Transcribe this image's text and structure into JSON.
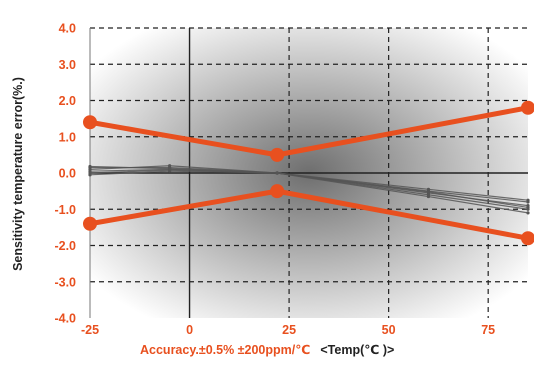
{
  "chart_data": {
    "type": "line",
    "ylabel": "Sensitivity temperature error(%.)",
    "xlabel_parts": {
      "accuracy": "Accuracy.±0.5%  ±200ppm/℃",
      "temp": "<Temp(℃ )>"
    },
    "xlim": [
      -25,
      85
    ],
    "ylim": [
      -4.0,
      4.0
    ],
    "xticks": [
      -25,
      0,
      25,
      50,
      75
    ],
    "xtick_labels": [
      "-25",
      "0",
      "25",
      "50",
      "75"
    ],
    "yticks": [
      4.0,
      3.0,
      2.0,
      1.0,
      0.0,
      -1.0,
      -2.0,
      -3.0,
      -4.0
    ],
    "ytick_labels": [
      "4.0",
      "3.0",
      "2.0",
      "1.0",
      "0.0",
      "-1.0",
      "-2.0",
      "-3.0",
      "-4.0"
    ],
    "grid": true,
    "series": [
      {
        "role": "upper-limit",
        "x": [
          -25,
          22,
          85
        ],
        "y": [
          1.4,
          0.5,
          1.8
        ]
      },
      {
        "role": "lower-limit",
        "x": [
          -25,
          22,
          85
        ],
        "y": [
          -1.4,
          -0.5,
          -1.8
        ]
      },
      {
        "role": "measured",
        "x": [
          -25,
          -5,
          22,
          60,
          85
        ],
        "y": [
          0.15,
          0.15,
          0.0,
          -0.5,
          -0.8
        ]
      },
      {
        "role": "measured",
        "x": [
          -25,
          -5,
          22,
          60,
          85
        ],
        "y": [
          0.05,
          0.1,
          0.0,
          -0.55,
          -0.9
        ]
      },
      {
        "role": "measured",
        "x": [
          -25,
          -5,
          22,
          60,
          85
        ],
        "y": [
          -0.05,
          0.05,
          0.0,
          -0.6,
          -1.0
        ]
      },
      {
        "role": "measured",
        "x": [
          -25,
          -5,
          22,
          60,
          85
        ],
        "y": [
          0.1,
          0.2,
          0.0,
          -0.45,
          -0.75
        ]
      },
      {
        "role": "measured",
        "x": [
          -25,
          -5,
          22,
          60,
          85
        ],
        "y": [
          0.0,
          0.08,
          0.0,
          -0.65,
          -1.1
        ]
      },
      {
        "role": "measured",
        "x": [
          -25,
          -5,
          22,
          60,
          85
        ],
        "y": [
          0.18,
          0.12,
          0.0,
          -0.52,
          -0.95
        ]
      }
    ],
    "colors": {
      "limit_line": "#e8501f",
      "measured_line": "#555555",
      "tick_text": "#e8501f",
      "grid_line": "#222222",
      "background_light": "#ffffff",
      "background_dark": "#6e6e6e"
    }
  }
}
